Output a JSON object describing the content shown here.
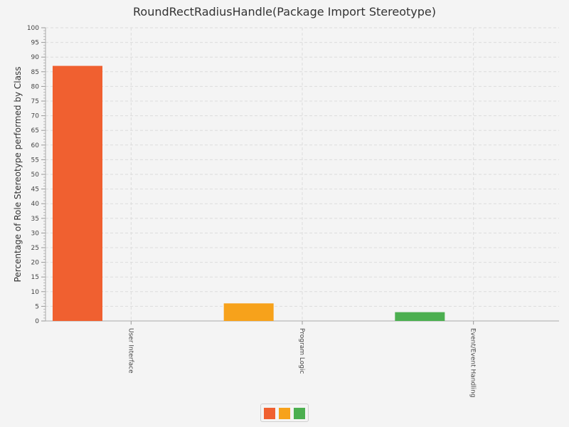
{
  "chart_data": {
    "type": "bar",
    "title": "RoundRectRadiusHandle(Package Import Stereotype)",
    "ylabel": "Percentage of Role Stereotype performed by Class",
    "xlabel": "",
    "ylim": [
      0,
      100
    ],
    "ytick_step": 5,
    "grid": true,
    "legend_position": "bottom-center",
    "categories": [
      "User Interface",
      "Program Logic",
      "Event/Event Handling"
    ],
    "values": [
      87,
      6,
      3
    ],
    "colors": [
      "#f06030",
      "#f7a21b",
      "#4caf50"
    ]
  }
}
